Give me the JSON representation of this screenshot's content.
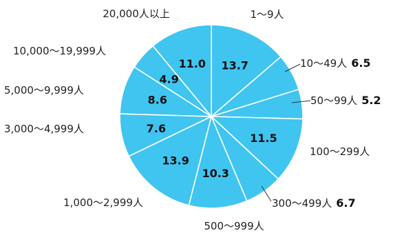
{
  "chart_data": {
    "type": "pie",
    "colors": {
      "slice": "#3fc5f0",
      "stroke": "#ffffff",
      "text": "#222222",
      "leader": "#333333"
    },
    "slices": [
      {
        "label": "1〜9人",
        "value": 13.7
      },
      {
        "label": "10〜49人",
        "value": 6.5
      },
      {
        "label": "50〜99人",
        "value": 5.2
      },
      {
        "label": "100〜299人",
        "value": 11.5
      },
      {
        "label": "300〜499人",
        "value": 6.7
      },
      {
        "label": "500〜999人",
        "value": 10.3
      },
      {
        "label": "1,000〜2,999人",
        "value": 13.9
      },
      {
        "label": "3,000〜4,999人",
        "value": 7.6
      },
      {
        "label": "5,000〜9,999人",
        "value": 8.6
      },
      {
        "label": "10,000〜19,999人",
        "value": 4.9
      },
      {
        "label": "20,000人以上",
        "value": 11.0
      }
    ]
  }
}
